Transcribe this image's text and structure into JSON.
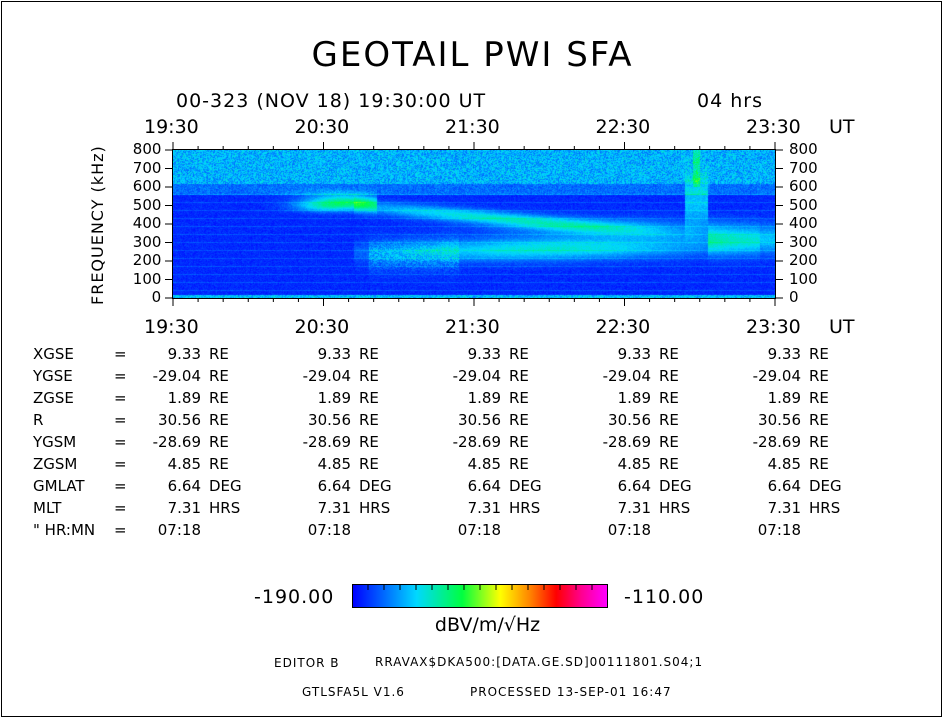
{
  "title": "GEOTAIL PWI SFA",
  "subheader": "00-323 (NOV 18) 19:30:00 UT",
  "duration": "04 hrs",
  "chart_data": {
    "type": "heatmap",
    "title": "GEOTAIL PWI SFA",
    "ylabel": "FREQUENCY (kHz)",
    "xlabel": "UT",
    "x_ticks": [
      "19:30",
      "20:30",
      "21:30",
      "22:30",
      "23:30"
    ],
    "x_unit": "UT",
    "y_ticks": [
      "800",
      "700",
      "600",
      "500",
      "400",
      "300",
      "200",
      "100",
      "0"
    ],
    "ylim": [
      0,
      800
    ],
    "colorbar": {
      "min": "-190.00",
      "max": "-110.00",
      "unit": "dBV/m/√Hz"
    }
  },
  "ephemeris": {
    "rows": [
      {
        "label": "XGSE",
        "values": [
          "9.33",
          "9.33",
          "9.33",
          "9.33",
          "9.33"
        ],
        "unit": "RE"
      },
      {
        "label": "YGSE",
        "values": [
          "-29.04",
          "-29.04",
          "-29.04",
          "-29.04",
          "-29.04"
        ],
        "unit": "RE"
      },
      {
        "label": "ZGSE",
        "values": [
          "1.89",
          "1.89",
          "1.89",
          "1.89",
          "1.89"
        ],
        "unit": "RE"
      },
      {
        "label": "R",
        "values": [
          "30.56",
          "30.56",
          "30.56",
          "30.56",
          "30.56"
        ],
        "unit": "RE"
      },
      {
        "label": "YGSM",
        "values": [
          "-28.69",
          "-28.69",
          "-28.69",
          "-28.69",
          "-28.69"
        ],
        "unit": "RE"
      },
      {
        "label": "ZGSM",
        "values": [
          "4.85",
          "4.85",
          "4.85",
          "4.85",
          "4.85"
        ],
        "unit": "RE"
      },
      {
        "label": "GMLAT",
        "values": [
          "6.64",
          "6.64",
          "6.64",
          "6.64",
          "6.64"
        ],
        "unit": "DEG"
      },
      {
        "label": "MLT",
        "values": [
          "7.31",
          "7.31",
          "7.31",
          "7.31",
          "7.31"
        ],
        "unit": "HRS"
      },
      {
        "label": "\" HR:MN",
        "values": [
          "07:18",
          "07:18",
          "07:18",
          "07:18",
          "07:18"
        ],
        "unit": ""
      }
    ]
  },
  "footer": {
    "editor": "EDITOR B",
    "path": "RRAVAX$DKA500:[DATA.GE.SD]00111801.S04;1",
    "version": "GTLSFA5L V1.6",
    "processed": "PROCESSED 13-SEP-01  16:47"
  }
}
